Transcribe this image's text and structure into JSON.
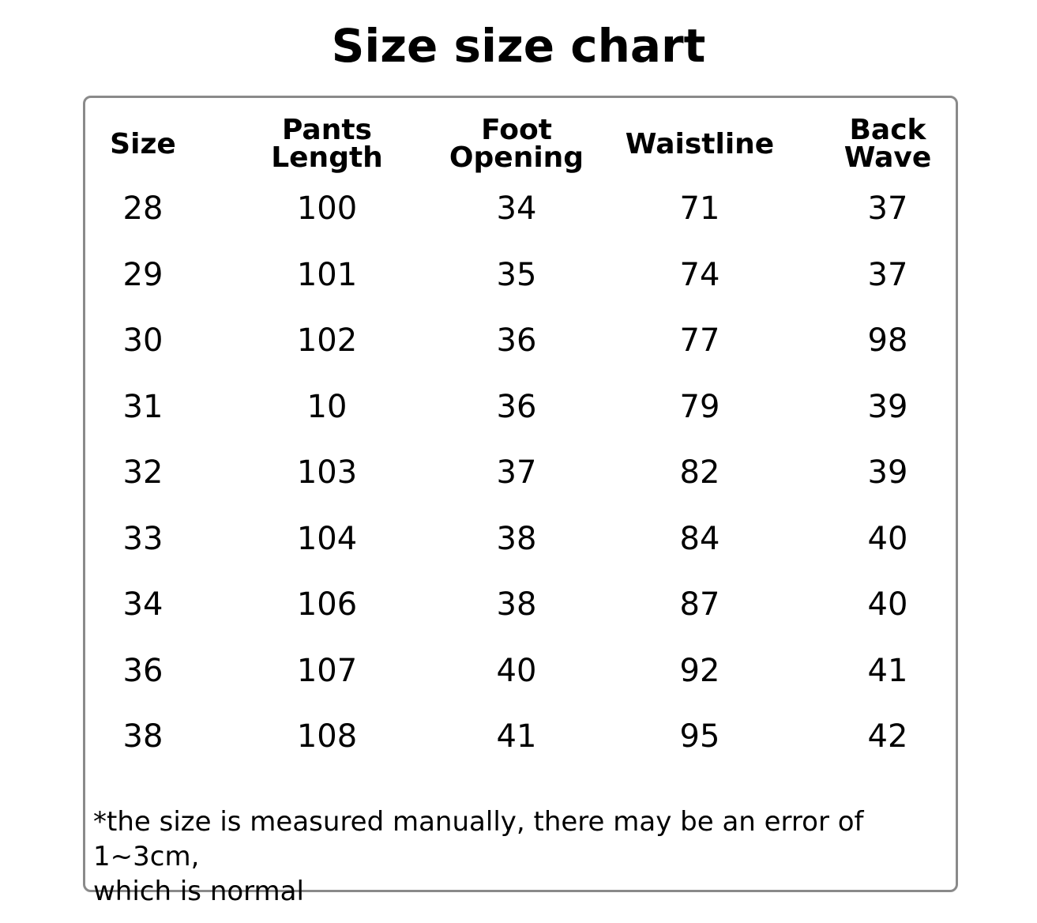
{
  "title": "Size size chart",
  "columns": [
    "Size",
    "Pants\nLength",
    "Foot\nOpening",
    "Waistline",
    "Back\nWave"
  ],
  "rows": [
    [
      "28",
      "100",
      "34",
      "71",
      "37"
    ],
    [
      "29",
      "101",
      "35",
      "74",
      "37"
    ],
    [
      "30",
      "102",
      "36",
      "77",
      "98"
    ],
    [
      "31",
      "10",
      "36",
      "79",
      "39"
    ],
    [
      "32",
      "103",
      "37",
      "82",
      "39"
    ],
    [
      "33",
      "104",
      "38",
      "84",
      "40"
    ],
    [
      "34",
      "106",
      "38",
      "87",
      "40"
    ],
    [
      "36",
      "107",
      "40",
      "92",
      "41"
    ],
    [
      "38",
      "108",
      "41",
      "95",
      "42"
    ]
  ],
  "footnote": "*the size is measured manually, there may be an error of 1~3cm,\nwhich is normal",
  "colors": {
    "border": "#8a8a8a",
    "text": "#000000",
    "background": "#ffffff"
  }
}
